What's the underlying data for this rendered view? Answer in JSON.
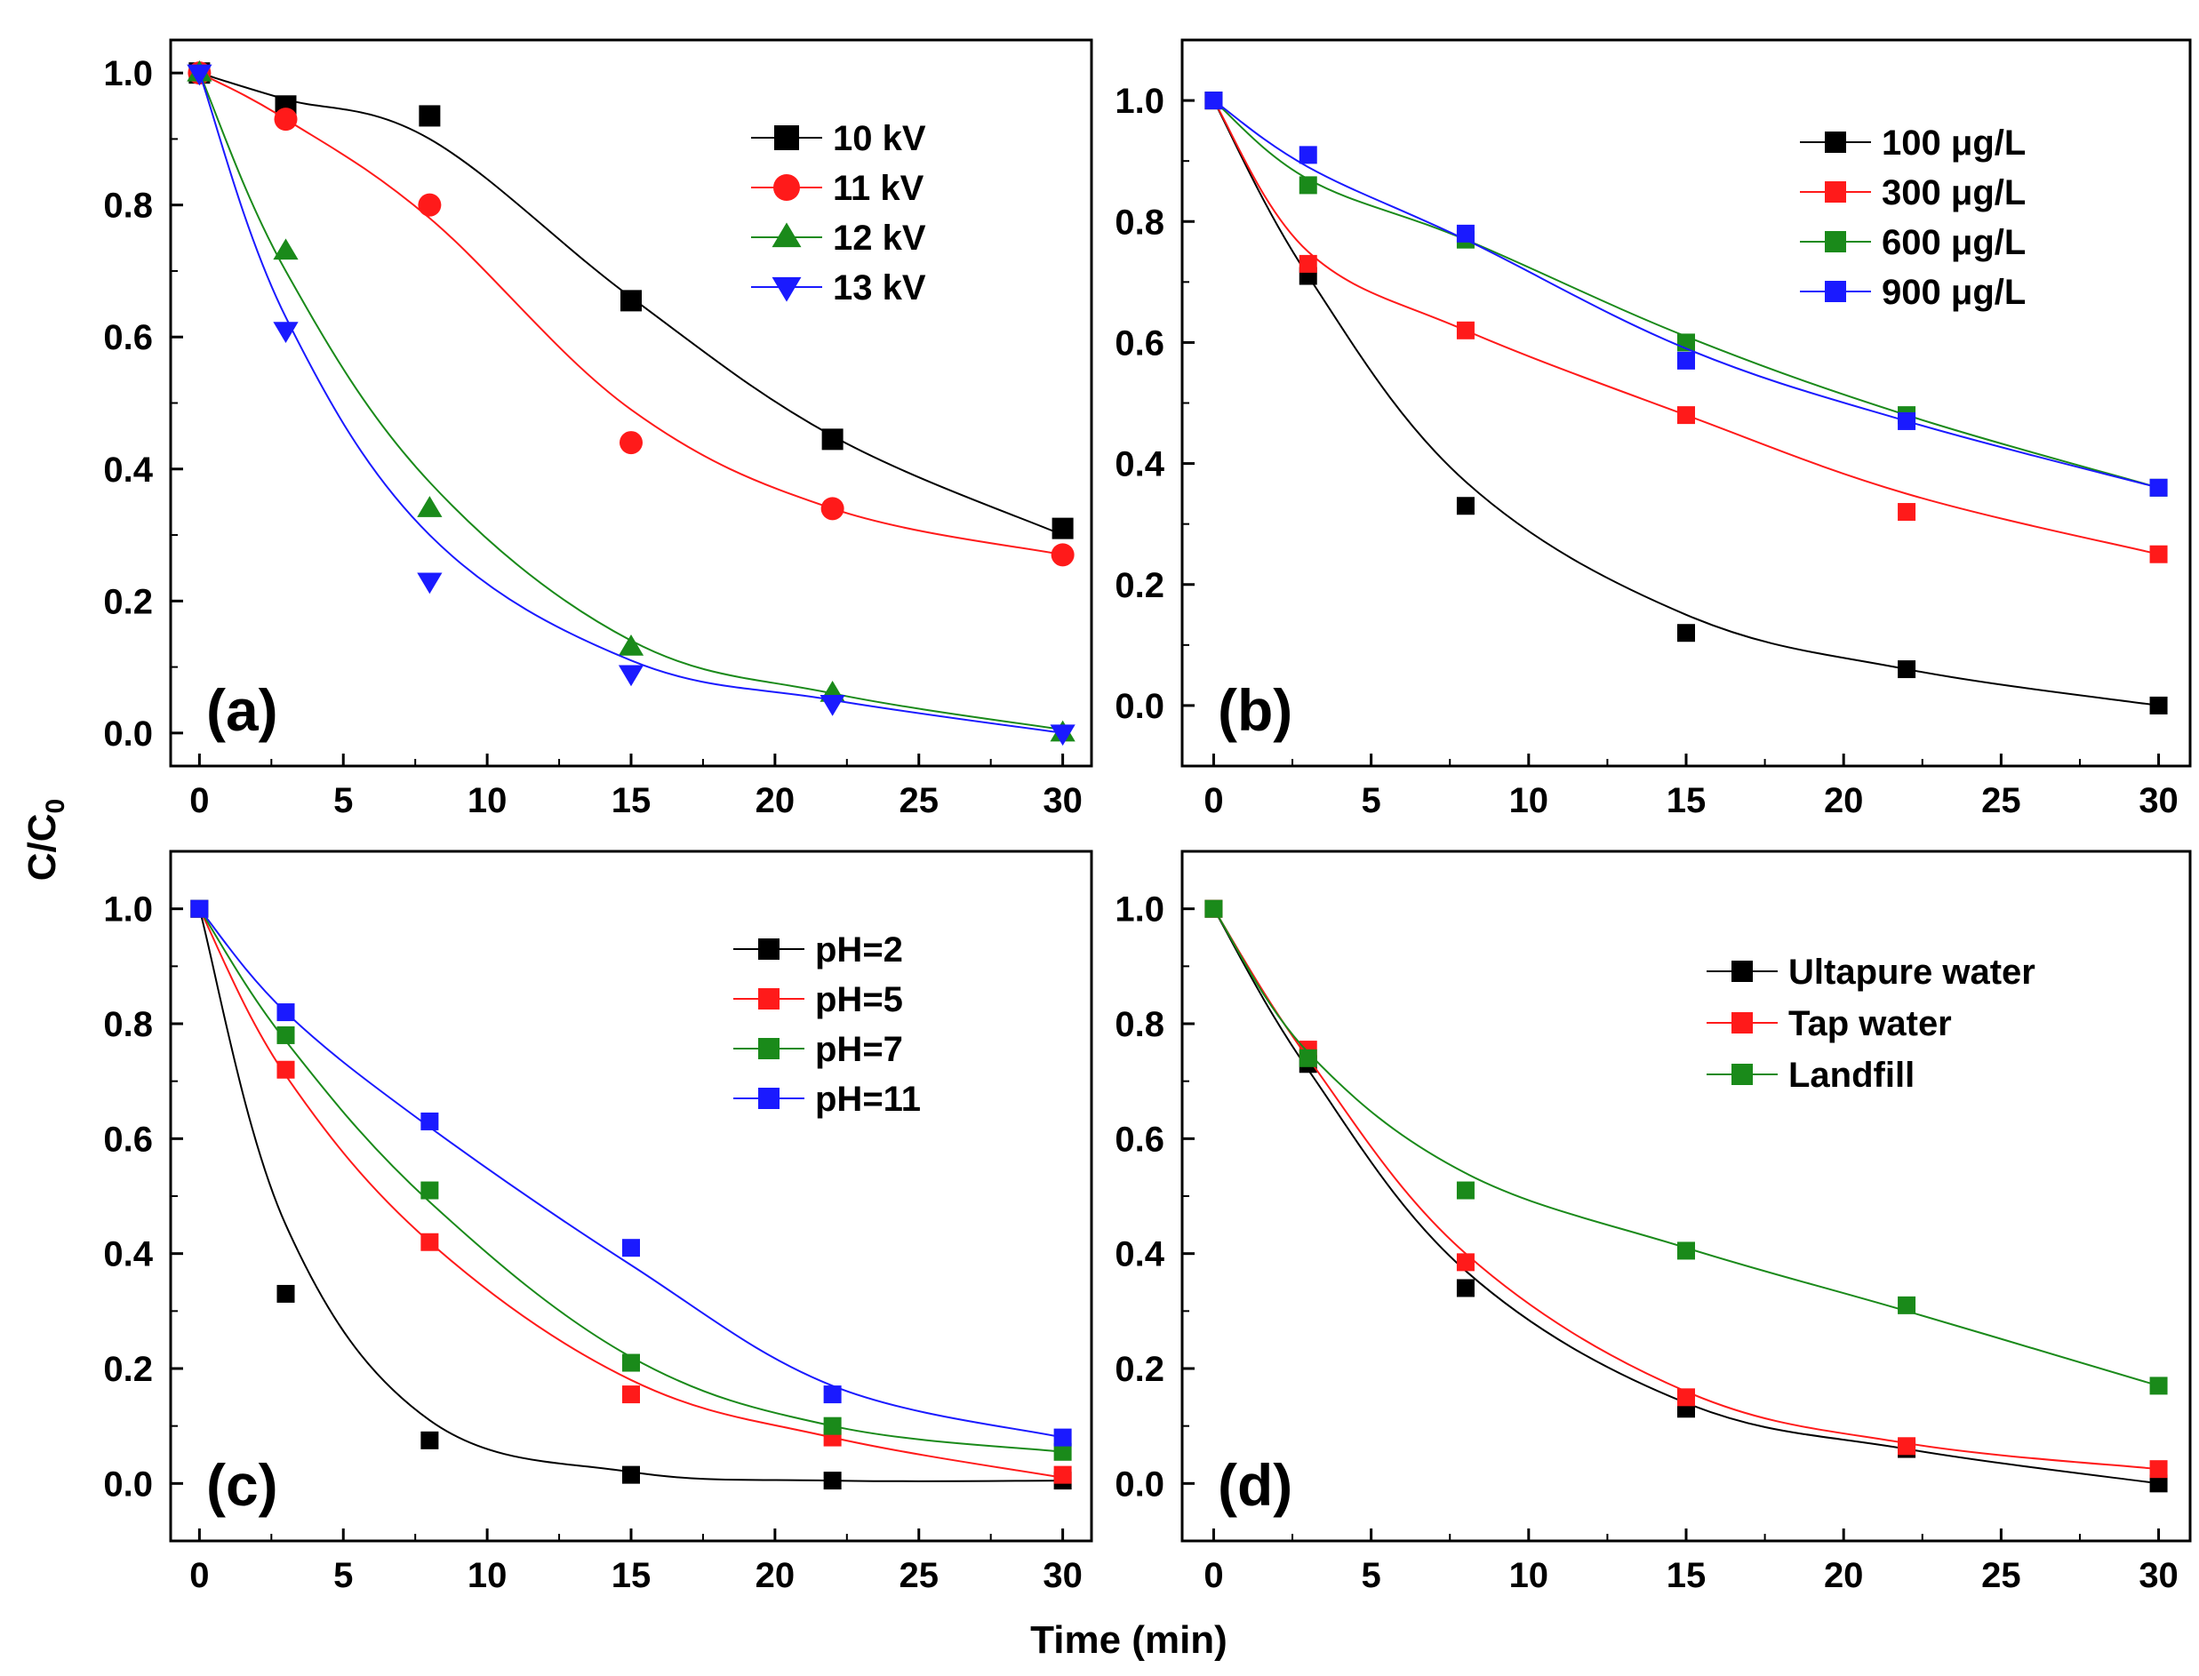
{
  "figure": {
    "shared_xlabel": "Time (min)",
    "shared_ylabel": "C/C",
    "shared_ylabel_subscript": "0",
    "colors": {
      "black": "#000000",
      "red": "#ff1a1a",
      "green": "#1a8a1a",
      "blue": "#1a1aff"
    }
  },
  "chart_data": [
    {
      "type": "scatter",
      "panel_label": "(a)",
      "xlim": [
        -1,
        31
      ],
      "ylim": [
        -0.05,
        1.05
      ],
      "xticks": [
        0,
        5,
        10,
        15,
        20,
        25,
        30
      ],
      "yticks": [
        "0.0",
        "0.2",
        "0.4",
        "0.6",
        "0.8",
        "1.0"
      ],
      "xlabel": "",
      "ylabel": "",
      "legend_position": "top-right",
      "series": [
        {
          "name": "10 kV",
          "color": "#000000",
          "marker": "square",
          "x": [
            0,
            3,
            8,
            15,
            22,
            30
          ],
          "y": [
            1.0,
            0.95,
            0.935,
            0.655,
            0.445,
            0.31
          ],
          "fit": [
            1.0,
            0.96,
            0.9,
            0.66,
            0.45,
            0.3
          ]
        },
        {
          "name": "11 kV",
          "color": "#ff1a1a",
          "marker": "circle",
          "x": [
            0,
            3,
            8,
            15,
            22,
            30
          ],
          "y": [
            1.0,
            0.93,
            0.8,
            0.44,
            0.34,
            0.27
          ],
          "fit": [
            1.0,
            0.93,
            0.78,
            0.49,
            0.34,
            0.27
          ]
        },
        {
          "name": "12 kV",
          "color": "#1a8a1a",
          "marker": "triangle-up",
          "x": [
            0,
            3,
            8,
            15,
            22,
            30
          ],
          "y": [
            1.0,
            0.73,
            0.34,
            0.13,
            0.06,
            0.0
          ],
          "fit": [
            1.0,
            0.7,
            0.38,
            0.14,
            0.06,
            0.005
          ]
        },
        {
          "name": "13 kV",
          "color": "#1a1aff",
          "marker": "triangle-down",
          "x": [
            0,
            3,
            8,
            15,
            22,
            30
          ],
          "y": [
            1.0,
            0.61,
            0.23,
            0.09,
            0.045,
            0.0
          ],
          "fit": [
            1.0,
            0.63,
            0.3,
            0.11,
            0.05,
            0.0
          ]
        }
      ]
    },
    {
      "type": "scatter",
      "panel_label": "(b)",
      "xlim": [
        -1,
        31
      ],
      "ylim": [
        -0.1,
        1.1
      ],
      "xticks": [
        0,
        5,
        10,
        15,
        20,
        25,
        30
      ],
      "yticks": [
        "0.0",
        "0.2",
        "0.4",
        "0.6",
        "0.8",
        "1.0"
      ],
      "xlabel": "",
      "ylabel": "",
      "legend_position": "top-right",
      "series": [
        {
          "name": "100 μg/L",
          "color": "#000000",
          "marker": "square",
          "x": [
            0,
            3,
            8,
            15,
            22,
            30
          ],
          "y": [
            1.0,
            0.71,
            0.33,
            0.12,
            0.06,
            0.0
          ],
          "fit": [
            1.0,
            0.71,
            0.37,
            0.15,
            0.06,
            0.0
          ]
        },
        {
          "name": "300 μg/L",
          "color": "#ff1a1a",
          "marker": "square",
          "x": [
            0,
            3,
            8,
            15,
            22,
            30
          ],
          "y": [
            1.0,
            0.73,
            0.62,
            0.48,
            0.32,
            0.25
          ],
          "fit": [
            1.0,
            0.75,
            0.62,
            0.48,
            0.35,
            0.25
          ]
        },
        {
          "name": "600 μg/L",
          "color": "#1a8a1a",
          "marker": "square",
          "x": [
            0,
            3,
            8,
            15,
            22,
            30
          ],
          "y": [
            1.0,
            0.86,
            0.77,
            0.6,
            0.48,
            0.36
          ],
          "fit": [
            1.0,
            0.87,
            0.77,
            0.61,
            0.48,
            0.36
          ]
        },
        {
          "name": "900 μg/L",
          "color": "#1a1aff",
          "marker": "square",
          "x": [
            0,
            3,
            8,
            15,
            22,
            30
          ],
          "y": [
            1.0,
            0.91,
            0.78,
            0.57,
            0.47,
            0.36
          ],
          "fit": [
            1.0,
            0.89,
            0.77,
            0.59,
            0.47,
            0.36
          ]
        }
      ]
    },
    {
      "type": "scatter",
      "panel_label": "(c)",
      "xlim": [
        -1,
        31
      ],
      "ylim": [
        -0.1,
        1.1
      ],
      "xticks": [
        0,
        5,
        10,
        15,
        20,
        25,
        30
      ],
      "yticks": [
        "0.0",
        "0.2",
        "0.4",
        "0.6",
        "0.8",
        "1.0"
      ],
      "xlabel": "",
      "ylabel": "",
      "legend_position": "top-right",
      "series": [
        {
          "name": "pH=2",
          "color": "#000000",
          "marker": "square",
          "x": [
            0,
            3,
            8,
            15,
            22,
            30
          ],
          "y": [
            1.0,
            0.33,
            0.075,
            0.015,
            0.005,
            0.005
          ],
          "fit": [
            1.0,
            0.45,
            0.11,
            0.02,
            0.005,
            0.005
          ]
        },
        {
          "name": "pH=5",
          "color": "#ff1a1a",
          "marker": "square",
          "x": [
            0,
            3,
            8,
            15,
            22,
            30
          ],
          "y": [
            1.0,
            0.72,
            0.42,
            0.155,
            0.08,
            0.015
          ],
          "fit": [
            1.0,
            0.71,
            0.42,
            0.18,
            0.08,
            0.01
          ]
        },
        {
          "name": "pH=7",
          "color": "#1a8a1a",
          "marker": "square",
          "x": [
            0,
            3,
            8,
            15,
            22,
            30
          ],
          "y": [
            1.0,
            0.78,
            0.51,
            0.21,
            0.1,
            0.055
          ],
          "fit": [
            1.0,
            0.77,
            0.49,
            0.22,
            0.1,
            0.055
          ]
        },
        {
          "name": "pH=11",
          "color": "#1a1aff",
          "marker": "square",
          "x": [
            0,
            3,
            8,
            15,
            22,
            30
          ],
          "y": [
            1.0,
            0.82,
            0.63,
            0.41,
            0.155,
            0.08
          ],
          "fit": [
            1.0,
            0.82,
            0.62,
            0.38,
            0.17,
            0.08
          ]
        }
      ]
    },
    {
      "type": "scatter",
      "panel_label": "(d)",
      "xlim": [
        -1,
        31
      ],
      "ylim": [
        -0.1,
        1.1
      ],
      "xticks": [
        0,
        5,
        10,
        15,
        20,
        25,
        30
      ],
      "yticks": [
        "0.0",
        "0.2",
        "0.4",
        "0.6",
        "0.8",
        "1.0"
      ],
      "xlabel": "",
      "ylabel": "",
      "legend_position": "top-right",
      "series": [
        {
          "name": "Ultapure water",
          "color": "#000000",
          "marker": "square",
          "x": [
            0,
            3,
            8,
            15,
            22,
            30
          ],
          "y": [
            1.0,
            0.73,
            0.34,
            0.13,
            0.06,
            0.0
          ],
          "fit": [
            1.0,
            0.72,
            0.37,
            0.14,
            0.06,
            0.0
          ]
        },
        {
          "name": "Tap water",
          "color": "#ff1a1a",
          "marker": "square",
          "x": [
            0,
            3,
            8,
            15,
            22,
            30
          ],
          "y": [
            1.0,
            0.755,
            0.385,
            0.15,
            0.065,
            0.025
          ],
          "fit": [
            1.0,
            0.74,
            0.4,
            0.16,
            0.07,
            0.025
          ]
        },
        {
          "name": "Landfill",
          "color": "#1a8a1a",
          "marker": "square",
          "x": [
            0,
            3,
            8,
            15,
            22,
            30
          ],
          "y": [
            1.0,
            0.74,
            0.51,
            0.405,
            0.31,
            0.17
          ],
          "fit": [
            1.0,
            0.75,
            0.54,
            0.41,
            0.3,
            0.17
          ]
        }
      ]
    }
  ]
}
